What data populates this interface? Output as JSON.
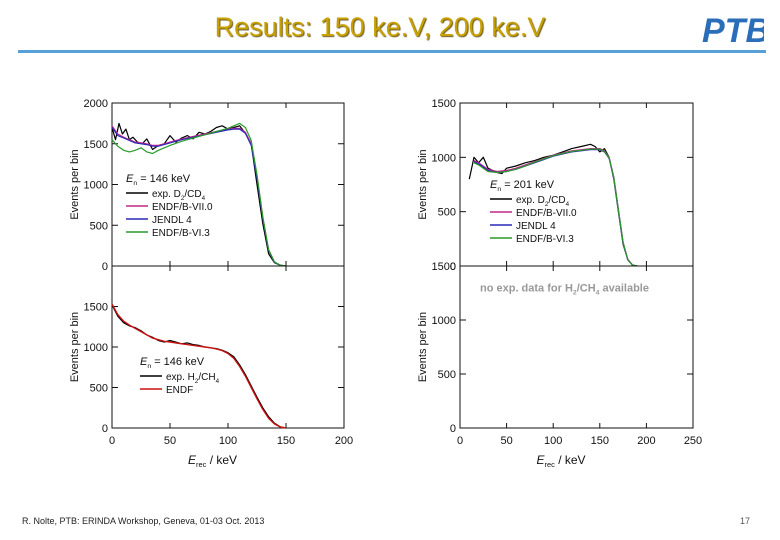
{
  "slide": {
    "title": "Results: 150 ke.V, 200 ke.V",
    "logo_text": "PTB",
    "footer": "R. Nolte, PTB: ERINDA Workshop, Geneva, 01-03 Oct. 2013",
    "page_number": "17"
  },
  "colors": {
    "title": "#c8a000",
    "rule": "#5aa0d8",
    "logo": "#2a6db8",
    "exp": "#000000",
    "endf_b7": "#c0288a",
    "jendl4": "#2a2ab8",
    "endf_b6": "#2a9a2a",
    "endf": "#cc1111"
  },
  "chart_data": [
    {
      "id": "left-top",
      "type": "line",
      "title": "",
      "xlabel": "",
      "ylabel": "Events per bin",
      "xlim": [
        0,
        200
      ],
      "ylim": [
        0,
        2000
      ],
      "yticks": [
        0,
        500,
        1000,
        1500,
        2000
      ],
      "xticks": [],
      "annotation": "En = 146 keV",
      "series": [
        {
          "name": "exp. D2/CD4",
          "color": "#000000",
          "stroke": 1.2,
          "x": [
            0,
            3,
            6,
            9,
            12,
            15,
            18,
            22,
            26,
            30,
            35,
            40,
            45,
            50,
            55,
            60,
            65,
            70,
            75,
            80,
            85,
            90,
            95,
            100,
            105,
            110,
            115,
            120,
            125,
            130,
            135,
            140,
            145,
            150
          ],
          "y": [
            1700,
            1550,
            1750,
            1620,
            1680,
            1550,
            1580,
            1520,
            1500,
            1560,
            1430,
            1480,
            1500,
            1600,
            1520,
            1570,
            1600,
            1560,
            1640,
            1620,
            1650,
            1700,
            1720,
            1680,
            1700,
            1720,
            1630,
            1500,
            1000,
            520,
            150,
            40,
            10,
            0
          ]
        },
        {
          "name": "ENDF/B-VII.0",
          "color": "#c0288a",
          "stroke": 1.2,
          "x": [
            0,
            5,
            10,
            15,
            20,
            25,
            30,
            35,
            40,
            50,
            60,
            70,
            80,
            90,
            100,
            105,
            110,
            115,
            120,
            125,
            130,
            135,
            140,
            145,
            150
          ],
          "y": [
            1720,
            1620,
            1580,
            1550,
            1520,
            1510,
            1500,
            1480,
            1480,
            1520,
            1560,
            1590,
            1620,
            1650,
            1680,
            1690,
            1690,
            1640,
            1500,
            1100,
            600,
            200,
            50,
            10,
            0
          ]
        },
        {
          "name": "JENDL 4",
          "color": "#2a2ab8",
          "stroke": 1.2,
          "x": [
            0,
            5,
            10,
            15,
            20,
            25,
            30,
            35,
            40,
            50,
            60,
            70,
            80,
            90,
            100,
            105,
            110,
            115,
            120,
            125,
            130,
            135,
            140,
            145,
            150
          ],
          "y": [
            1700,
            1600,
            1570,
            1540,
            1510,
            1500,
            1490,
            1470,
            1470,
            1510,
            1550,
            1580,
            1610,
            1640,
            1670,
            1680,
            1680,
            1630,
            1480,
            1080,
            580,
            190,
            45,
            8,
            0
          ]
        },
        {
          "name": "ENDF/B-VI.3",
          "color": "#2a9a2a",
          "stroke": 1.2,
          "x": [
            0,
            5,
            10,
            15,
            20,
            25,
            30,
            35,
            40,
            50,
            60,
            70,
            80,
            90,
            100,
            105,
            110,
            115,
            120,
            125,
            130,
            135,
            140,
            145,
            150
          ],
          "y": [
            1550,
            1470,
            1420,
            1400,
            1420,
            1450,
            1400,
            1380,
            1420,
            1480,
            1530,
            1570,
            1610,
            1650,
            1690,
            1720,
            1750,
            1700,
            1540,
            1120,
            600,
            200,
            50,
            10,
            0
          ]
        }
      ],
      "legend": [
        "exp. D2/CD4",
        "ENDF/B-VII.0",
        "JENDL 4",
        "ENDF/B-VI.3"
      ]
    },
    {
      "id": "left-bottom",
      "type": "line",
      "xlabel": "Erec / keV",
      "ylabel": "Events per bin",
      "xlim": [
        0,
        200
      ],
      "ylim": [
        0,
        2000
      ],
      "yticks": [
        0,
        500,
        1000,
        1500
      ],
      "xticks": [
        0,
        50,
        100,
        150,
        200
      ],
      "annotation": "En = 146 keV",
      "series": [
        {
          "name": "exp. H2/CH4",
          "color": "#000000",
          "stroke": 1.2,
          "x": [
            0,
            5,
            10,
            15,
            20,
            25,
            30,
            35,
            40,
            45,
            50,
            55,
            60,
            65,
            70,
            75,
            80,
            85,
            90,
            95,
            100,
            105,
            110,
            115,
            120,
            125,
            130,
            135,
            140,
            145,
            150
          ],
          "y": [
            1520,
            1380,
            1300,
            1260,
            1240,
            1200,
            1150,
            1120,
            1080,
            1060,
            1080,
            1060,
            1040,
            1050,
            1030,
            1020,
            1000,
            990,
            980,
            960,
            930,
            880,
            780,
            660,
            520,
            380,
            250,
            140,
            60,
            15,
            0
          ]
        },
        {
          "name": "ENDF",
          "color": "#cc1111",
          "stroke": 1.4,
          "x": [
            0,
            5,
            10,
            15,
            20,
            25,
            30,
            35,
            40,
            45,
            50,
            55,
            60,
            65,
            70,
            75,
            80,
            85,
            90,
            95,
            100,
            105,
            110,
            115,
            120,
            125,
            130,
            135,
            140,
            145,
            150
          ],
          "y": [
            1530,
            1400,
            1320,
            1270,
            1230,
            1190,
            1150,
            1110,
            1090,
            1070,
            1060,
            1050,
            1040,
            1030,
            1020,
            1010,
            1000,
            990,
            975,
            955,
            920,
            860,
            760,
            640,
            500,
            360,
            230,
            120,
            50,
            12,
            0
          ]
        }
      ],
      "legend": [
        "exp. H2/CH4",
        "ENDF"
      ]
    },
    {
      "id": "right-top",
      "type": "line",
      "xlabel": "",
      "ylabel": "Events per bin",
      "xlim": [
        0,
        250
      ],
      "ylim": [
        0,
        1500
      ],
      "yticks": [
        0,
        500,
        1000,
        1500
      ],
      "xticks": [],
      "annotation": "En = 201 keV",
      "series": [
        {
          "name": "exp. D2/CD4",
          "color": "#000000",
          "stroke": 1.2,
          "x": [
            10,
            15,
            20,
            25,
            30,
            35,
            40,
            45,
            50,
            60,
            70,
            80,
            90,
            100,
            110,
            120,
            130,
            140,
            145,
            150,
            155,
            160,
            165,
            170,
            175,
            180,
            185,
            190
          ],
          "y": [
            800,
            1000,
            950,
            1000,
            900,
            880,
            860,
            850,
            900,
            920,
            950,
            970,
            1000,
            1020,
            1050,
            1080,
            1100,
            1120,
            1100,
            1050,
            1080,
            1000,
            800,
            500,
            200,
            60,
            10,
            0
          ]
        },
        {
          "name": "ENDF/B-VII.0",
          "color": "#c0288a",
          "stroke": 1.2,
          "x": [
            15,
            20,
            25,
            30,
            40,
            50,
            60,
            70,
            80,
            90,
            100,
            110,
            120,
            130,
            140,
            150,
            155,
            160,
            165,
            170,
            175,
            180,
            185,
            190
          ],
          "y": [
            970,
            950,
            920,
            890,
            870,
            880,
            900,
            930,
            960,
            990,
            1020,
            1040,
            1060,
            1070,
            1080,
            1080,
            1060,
            1000,
            820,
            520,
            220,
            60,
            10,
            0
          ]
        },
        {
          "name": "JENDL 4",
          "color": "#2a2ab8",
          "stroke": 1.2,
          "x": [
            15,
            20,
            25,
            30,
            40,
            50,
            60,
            70,
            80,
            90,
            100,
            110,
            120,
            130,
            140,
            150,
            155,
            160,
            165,
            170,
            175,
            180,
            185,
            190
          ],
          "y": [
            960,
            940,
            910,
            880,
            860,
            870,
            890,
            920,
            950,
            980,
            1010,
            1030,
            1050,
            1060,
            1070,
            1070,
            1050,
            990,
            810,
            510,
            210,
            55,
            8,
            0
          ]
        },
        {
          "name": "ENDF/B-VI.3",
          "color": "#2a9a2a",
          "stroke": 1.2,
          "x": [
            15,
            20,
            25,
            30,
            40,
            50,
            60,
            70,
            80,
            90,
            100,
            110,
            120,
            130,
            140,
            150,
            155,
            160,
            165,
            170,
            175,
            180,
            185,
            190
          ],
          "y": [
            950,
            930,
            900,
            870,
            860,
            870,
            890,
            920,
            955,
            985,
            1015,
            1035,
            1055,
            1065,
            1075,
            1075,
            1055,
            995,
            815,
            515,
            215,
            58,
            9,
            0
          ]
        }
      ],
      "legend": [
        "exp. D2/CD4",
        "ENDF/B-VII.0",
        "JENDL 4",
        "ENDF/B-VI.3"
      ]
    },
    {
      "id": "right-bottom",
      "type": "line",
      "xlabel": "Erec / keV",
      "ylabel": "Events per bin",
      "xlim": [
        0,
        250
      ],
      "ylim": [
        0,
        1500
      ],
      "yticks": [
        0,
        500,
        1000,
        1500
      ],
      "xticks": [
        0,
        50,
        100,
        150,
        200,
        250
      ],
      "annotation": "no exp. data for H2/CH4 available",
      "series": [],
      "legend": []
    }
  ],
  "labels": {
    "en_left": "= 146 keV",
    "en_right": "= 201 keV",
    "exp_d2_prefix": "exp. D",
    "exp_d2_mid": "/CD",
    "exp_h2_prefix": "exp. H",
    "exp_h2_mid": "/CH",
    "sub_2": "2",
    "sub_4": "4",
    "sub_n": "n",
    "sub_rec": "rec",
    "e_letter": "E",
    "xunit": "/  keV",
    "no_data_prefix": "no exp. data for H",
    "no_data_mid": "/CH",
    "no_data_suffix": " available"
  }
}
